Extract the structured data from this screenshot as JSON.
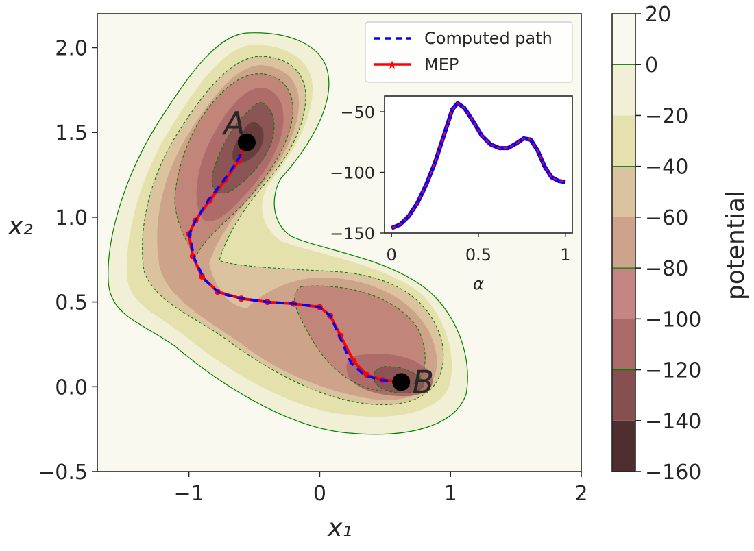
{
  "chart_data": [
    {
      "type": "contour",
      "title": "",
      "xlabel": "x₁",
      "ylabel": "x₂",
      "xlim": [
        -1.7,
        2.0
      ],
      "ylim": [
        -0.5,
        2.2
      ],
      "xticks": [
        -1,
        0,
        1,
        2
      ],
      "xtick_labels": [
        "−1",
        "0",
        "1",
        "2"
      ],
      "yticks": [
        -0.5,
        0.0,
        0.5,
        1.0,
        1.5,
        2.0
      ],
      "ytick_labels": [
        "−0.5",
        "0.0",
        "0.5",
        "1.0",
        "1.5",
        "2.0"
      ],
      "levels": [
        -160,
        -140,
        -120,
        -100,
        -80,
        -60,
        -40,
        -20,
        0,
        20
      ],
      "colorbar": {
        "label": "potential",
        "ticks": [
          -160,
          -140,
          -120,
          -100,
          -80,
          -60,
          -40,
          -20,
          0,
          20
        ],
        "tick_labels": [
          "−160",
          "−140",
          "−120",
          "−100",
          "−80",
          "−60",
          "−40",
          "−20",
          "0",
          "20"
        ],
        "line_levels": [
          0,
          -40,
          -80,
          -120
        ]
      },
      "points": [
        {
          "label": "A",
          "x": -0.558,
          "y": 1.441
        },
        {
          "label": "B",
          "x": 0.623,
          "y": 0.028
        }
      ],
      "legend": {
        "position": "top-right",
        "entries": [
          {
            "label": "Computed path",
            "color": "#0000ff",
            "style": "dashed"
          },
          {
            "label": "MEP",
            "color": "#ff0000",
            "style": "solid-star"
          }
        ]
      },
      "series": [
        {
          "name": "MEP",
          "x": [
            -0.558,
            -0.62,
            -0.72,
            -0.84,
            -0.95,
            -1.0,
            -0.97,
            -0.9,
            -0.78,
            -0.6,
            -0.4,
            -0.2,
            0.0,
            0.08,
            0.16,
            0.26,
            0.36,
            0.48,
            0.623
          ],
          "y": [
            1.441,
            1.33,
            1.22,
            1.1,
            0.98,
            0.9,
            0.77,
            0.65,
            0.56,
            0.52,
            0.5,
            0.49,
            0.47,
            0.42,
            0.3,
            0.15,
            0.07,
            0.04,
            0.028
          ]
        },
        {
          "name": "Computed path",
          "x": [
            -0.558,
            -0.63,
            -0.73,
            -0.85,
            -0.95,
            -0.995,
            -0.96,
            -0.88,
            -0.76,
            -0.6,
            -0.4,
            -0.2,
            0.0,
            0.08,
            0.15,
            0.24,
            0.34,
            0.46,
            0.623
          ],
          "y": [
            1.441,
            1.33,
            1.22,
            1.1,
            0.98,
            0.9,
            0.76,
            0.63,
            0.55,
            0.52,
            0.5,
            0.49,
            0.47,
            0.42,
            0.3,
            0.14,
            0.07,
            0.04,
            0.028
          ]
        }
      ]
    },
    {
      "type": "line",
      "title": "",
      "xlabel": "α",
      "ylabel": "",
      "xlim": [
        -0.04,
        1.04
      ],
      "ylim": [
        -150,
        -37
      ],
      "xticks": [
        0,
        0.5,
        1
      ],
      "xtick_labels": [
        "0",
        "0.5",
        "1"
      ],
      "yticks": [
        -50,
        -100,
        -150
      ],
      "ytick_labels": [
        "−50",
        "−100",
        "−150"
      ],
      "x": [
        0.0,
        0.05,
        0.1,
        0.15,
        0.2,
        0.25,
        0.3,
        0.35,
        0.38,
        0.42,
        0.47,
        0.52,
        0.57,
        0.62,
        0.67,
        0.72,
        0.76,
        0.8,
        0.84,
        0.88,
        0.92,
        0.96,
        1.0
      ],
      "series": [
        {
          "name": "Computed path",
          "values": [
            -146,
            -143,
            -136,
            -125,
            -110,
            -92,
            -70,
            -48,
            -43,
            -47,
            -58,
            -70,
            -77,
            -80,
            -80,
            -76,
            -72,
            -73,
            -82,
            -95,
            -104,
            -107,
            -108
          ]
        },
        {
          "name": "MEP",
          "values": [
            -146,
            -143,
            -136,
            -125,
            -110,
            -92,
            -70,
            -48,
            -43,
            -47,
            -58,
            -70,
            -77,
            -80,
            -80,
            -76,
            -72,
            -73,
            -82,
            -95,
            -104,
            -107,
            -108
          ]
        }
      ]
    }
  ]
}
